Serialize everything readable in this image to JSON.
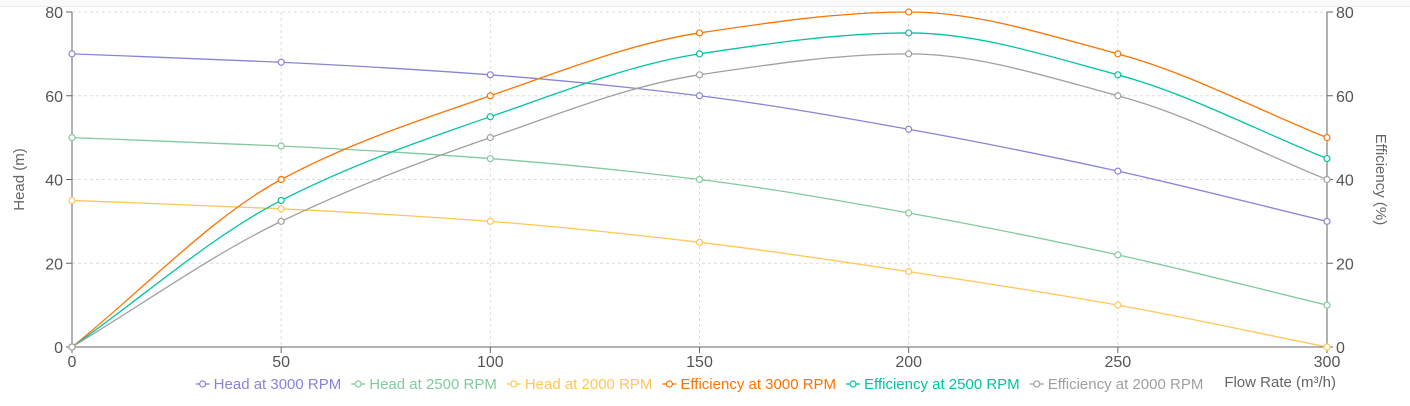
{
  "chart_data": {
    "type": "line",
    "title": "",
    "x": [
      0,
      50,
      100,
      150,
      200,
      250,
      300
    ],
    "xlabel": "Flow Rate (m³/h)",
    "xlim": [
      0,
      300
    ],
    "x_ticks": [
      "0",
      "50",
      "100",
      "150",
      "200",
      "250",
      "300"
    ],
    "ylabel_left": "Head (m)",
    "ylabel_right": "Efficiency (%)",
    "ylim_left": [
      0,
      80
    ],
    "ylim_right": [
      0,
      80
    ],
    "y_ticks_left": [
      "0",
      "20",
      "40",
      "60",
      "80"
    ],
    "y_ticks_right": [
      "0",
      "20",
      "40",
      "60",
      "80"
    ],
    "grid": true,
    "legend_position": "bottom",
    "series": [
      {
        "name": "Head at 3000 RPM",
        "axis": "left",
        "color": "#8884d8",
        "values": [
          70,
          68,
          65,
          60,
          52,
          42,
          30
        ]
      },
      {
        "name": "Head at 2500 RPM",
        "axis": "left",
        "color": "#82ca9d",
        "values": [
          50,
          48,
          45,
          40,
          32,
          22,
          10
        ]
      },
      {
        "name": "Head at 2000 RPM",
        "axis": "left",
        "color": "#ffc658",
        "values": [
          35,
          33,
          30,
          25,
          18,
          10,
          0
        ]
      },
      {
        "name": "Efficiency at 3000 RPM",
        "axis": "right",
        "color": "#ff7300",
        "values": [
          0,
          40,
          60,
          75,
          80,
          70,
          50
        ]
      },
      {
        "name": "Efficiency at 2500 RPM",
        "axis": "right",
        "color": "#00c49f",
        "values": [
          0,
          35,
          55,
          70,
          75,
          65,
          45
        ]
      },
      {
        "name": "Efficiency at 2000 RPM",
        "axis": "right",
        "color": "#a0a0a0",
        "values": [
          0,
          30,
          50,
          65,
          70,
          60,
          40
        ]
      }
    ]
  }
}
